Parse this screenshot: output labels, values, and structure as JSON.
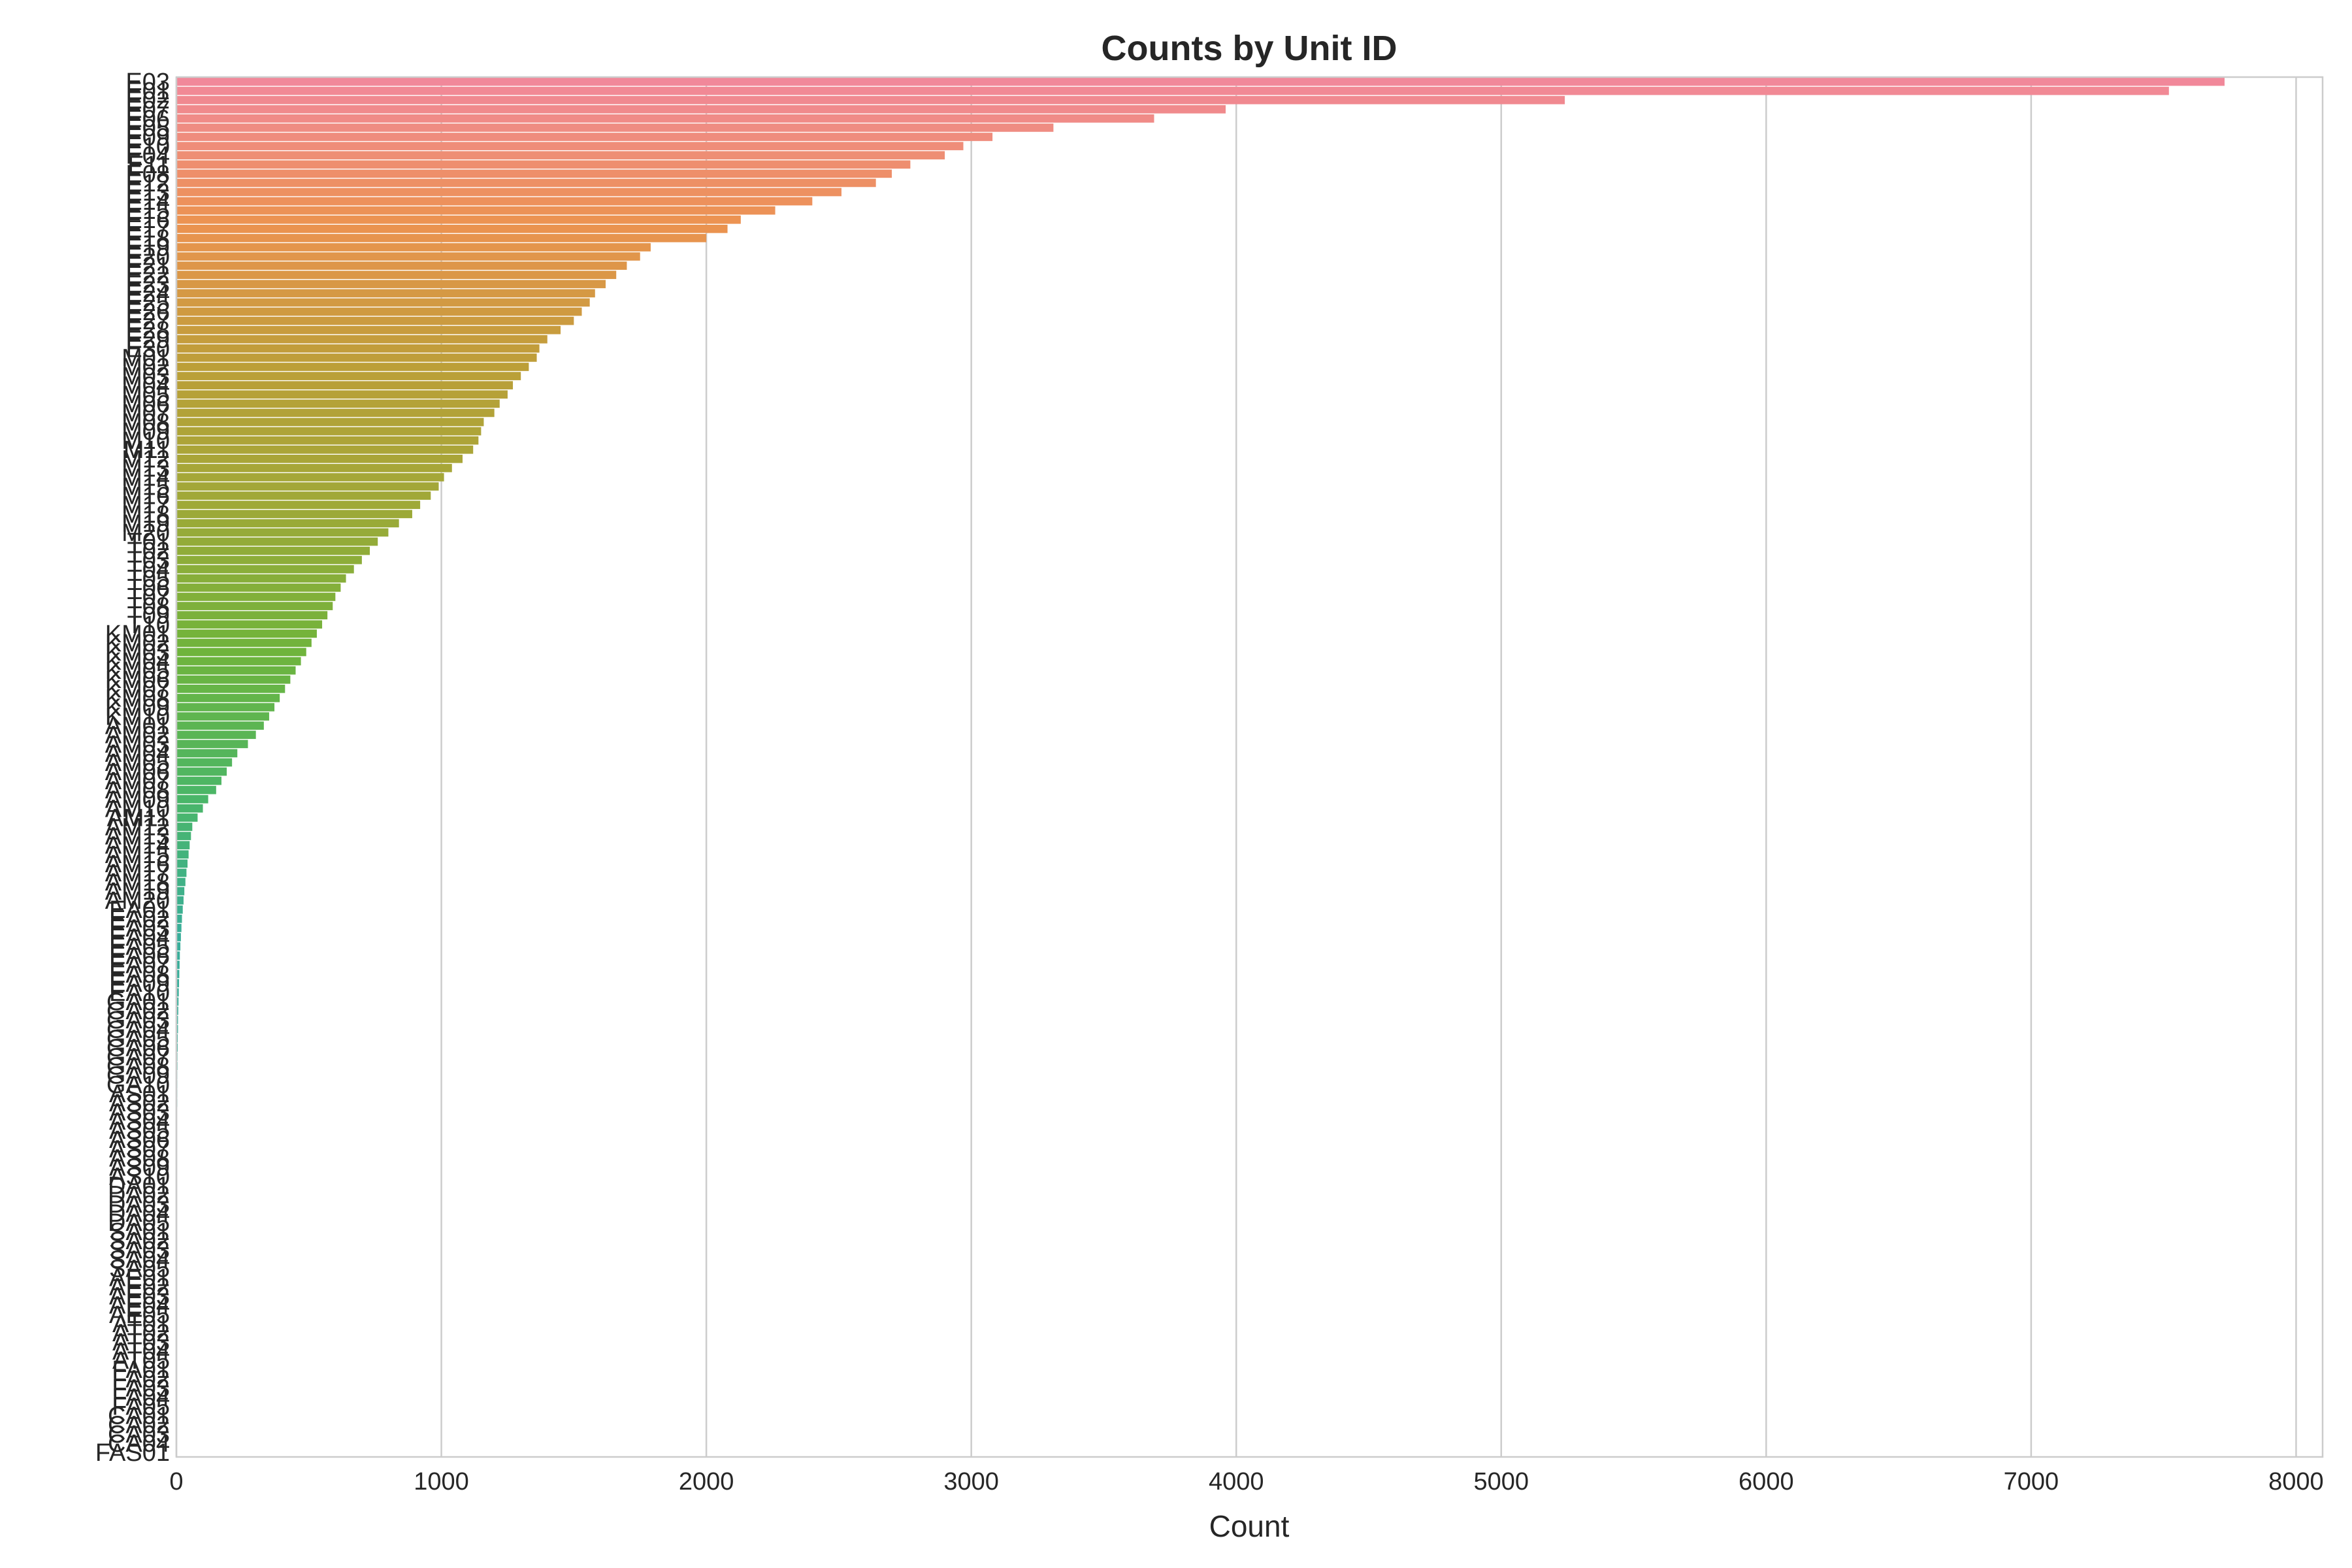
{
  "chart_data": {
    "type": "bar",
    "orientation": "horizontal",
    "title": "Counts by Unit ID",
    "xlabel": "Count",
    "ylabel": "",
    "xlim": [
      0,
      8100
    ],
    "xticks": [
      0,
      1000,
      2000,
      3000,
      4000,
      5000,
      6000,
      7000,
      8000
    ],
    "grid": "vertical",
    "legend": "none",
    "palette": [
      "#f1889a",
      "#ec9350",
      "#bc9f38",
      "#9ea938",
      "#6fb43c",
      "#4bb667",
      "#39ae9a"
    ],
    "categories": [
      "E03",
      "E01",
      "E02",
      "E07",
      "E06",
      "E05",
      "E09",
      "E10",
      "E04",
      "E11",
      "E08",
      "E12",
      "E13",
      "E14",
      "E15",
      "E16",
      "E17",
      "E18",
      "E19",
      "E20",
      "E21",
      "E22",
      "E23",
      "E24",
      "E25",
      "E26",
      "E27",
      "E28",
      "E29",
      "E30",
      "M01",
      "M02",
      "M03",
      "M04",
      "M05",
      "M06",
      "M07",
      "M08",
      "M09",
      "M10",
      "M11",
      "M12",
      "M13",
      "M14",
      "M15",
      "M16",
      "M17",
      "M18",
      "M19",
      "M20",
      "T01",
      "T02",
      "T03",
      "T04",
      "T05",
      "T06",
      "T07",
      "T08",
      "T09",
      "T10",
      "KM01",
      "KM02",
      "KM03",
      "KM04",
      "KM05",
      "KM06",
      "KM07",
      "KM08",
      "KM09",
      "KM10",
      "AM01",
      "AM02",
      "AM03",
      "AM04",
      "AM05",
      "AM06",
      "AM07",
      "AM08",
      "AM09",
      "AM10",
      "AM11",
      "AM12",
      "AM13",
      "AM14",
      "AM15",
      "AM16",
      "AM17",
      "AM18",
      "AM19",
      "AM20",
      "EA01",
      "EA02",
      "EA03",
      "EA04",
      "EA05",
      "EA06",
      "EA07",
      "EA08",
      "EA09",
      "EA10",
      "GA01",
      "GA02",
      "GA03",
      "GA04",
      "GA05",
      "GA06",
      "GA07",
      "GA08",
      "GA09",
      "GA10",
      "AS01",
      "AS02",
      "AS03",
      "AS04",
      "AS05",
      "AS06",
      "AS07",
      "AS08",
      "AS09",
      "AS10",
      "DA01",
      "DA02",
      "DA03",
      "DA04",
      "DA05",
      "SA01",
      "SA02",
      "SA03",
      "SA04",
      "SA05",
      "AE01",
      "AE02",
      "AE03",
      "AE04",
      "AE05",
      "AT01",
      "AT02",
      "AT03",
      "AT04",
      "AT05",
      "FA01",
      "FA02",
      "FA03",
      "FA04",
      "FA05",
      "CA01",
      "CA02",
      "CA03",
      "CA04",
      "FAS01"
    ],
    "values": [
      7730,
      7520,
      5240,
      3960,
      3690,
      3310,
      3080,
      2970,
      2900,
      2770,
      2700,
      2640,
      2510,
      2400,
      2260,
      2130,
      2080,
      2000,
      1790,
      1750,
      1700,
      1660,
      1620,
      1580,
      1560,
      1530,
      1500,
      1450,
      1400,
      1370,
      1360,
      1330,
      1300,
      1270,
      1250,
      1220,
      1200,
      1160,
      1150,
      1140,
      1120,
      1080,
      1040,
      1010,
      990,
      960,
      920,
      890,
      840,
      800,
      760,
      730,
      700,
      670,
      640,
      620,
      600,
      590,
      570,
      550,
      530,
      510,
      490,
      470,
      450,
      430,
      410,
      390,
      370,
      350,
      330,
      300,
      270,
      230,
      210,
      190,
      170,
      150,
      120,
      100,
      80,
      60,
      55,
      50,
      46,
      42,
      38,
      34,
      30,
      27,
      24,
      21,
      19,
      17,
      15,
      13,
      12,
      11,
      10,
      9,
      8,
      7,
      6,
      6,
      5,
      5,
      4,
      4,
      3,
      3,
      3,
      3,
      2,
      2,
      2,
      2,
      2,
      2,
      2,
      2,
      1,
      1,
      1,
      1,
      1,
      1,
      1,
      1,
      1,
      1,
      1,
      1,
      1,
      1,
      1,
      1,
      1,
      1,
      1,
      1,
      1,
      1,
      1,
      1,
      1,
      1,
      1,
      1,
      1,
      1
    ]
  }
}
